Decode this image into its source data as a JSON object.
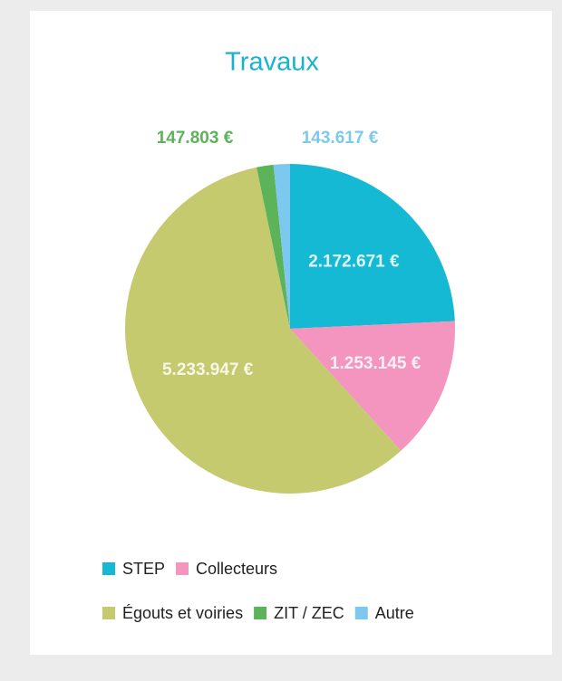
{
  "chart_data": {
    "type": "pie",
    "title": "Travaux",
    "categories": [
      "STEP",
      "Collecteurs",
      "Égouts et voiries",
      "ZIT / ZEC",
      "Autre"
    ],
    "values": [
      2172671,
      1253145,
      5233947,
      147803,
      143617
    ],
    "value_labels": [
      "2.172.671 €",
      "1.253.145 €",
      "5.233.947 €",
      "147.803 €",
      "143.617 €"
    ],
    "colors": [
      "#16b9d4",
      "#f395bf",
      "#c5ca6f",
      "#5db35a",
      "#7cc8ee"
    ],
    "legend": "bottom"
  }
}
